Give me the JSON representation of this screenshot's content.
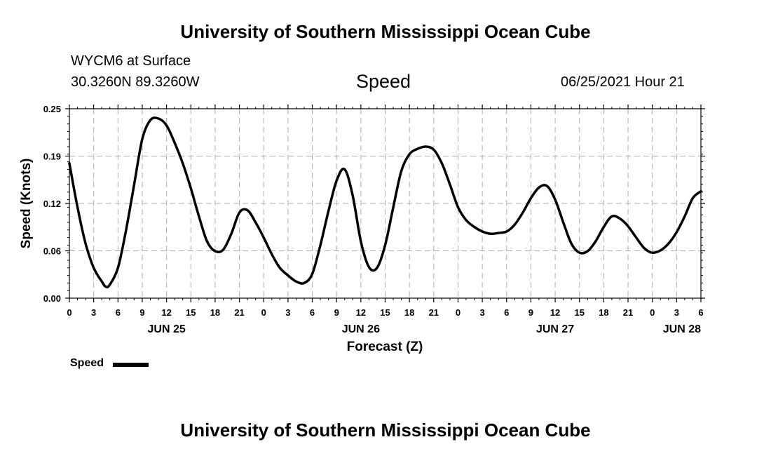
{
  "header": {
    "title": "University of Southern Mississippi Ocean Cube",
    "station": "WYCM6 at Surface",
    "coords": "30.3260N  89.3260W",
    "timestamp": "06/25/2021 Hour 21"
  },
  "footer": {
    "title": "University of Southern Mississippi Ocean Cube"
  },
  "chart_data": {
    "type": "line",
    "title": "Speed",
    "xlabel": "Forecast (Z)",
    "ylabel": "Speed (Knots)",
    "ylim": [
      0,
      0.25
    ],
    "xlim": [
      0,
      78
    ],
    "y_ticks": [
      "0.00",
      "0.06",
      "0.12",
      "0.19",
      "0.25"
    ],
    "x_tick_labels": [
      "0",
      "3",
      "6",
      "9",
      "12",
      "15",
      "18",
      "21",
      "0",
      "3",
      "6",
      "9",
      "12",
      "15",
      "18",
      "21",
      "0",
      "3",
      "6",
      "9",
      "12",
      "15",
      "18",
      "21",
      "0",
      "3",
      "6"
    ],
    "date_labels": [
      {
        "label": "JUN 25",
        "hour": 12
      },
      {
        "label": "JUN 26",
        "hour": 36
      },
      {
        "label": "JUN 27",
        "hour": 60
      },
      {
        "label": "JUN 28",
        "hour": 78
      }
    ],
    "grid": true,
    "line_color": "#000000",
    "series": [
      {
        "name": "Speed",
        "x": [
          0,
          1,
          2,
          3,
          4,
          4.5,
          5,
          6,
          7,
          8,
          9,
          10,
          11,
          12,
          13,
          14,
          15,
          16,
          17,
          18,
          19,
          20,
          21,
          22,
          23,
          24,
          25,
          26,
          27,
          28,
          29,
          30,
          31,
          32,
          33,
          34,
          35,
          36,
          37,
          38,
          39,
          40,
          41,
          42,
          43,
          44,
          45,
          46,
          47,
          48,
          49,
          50,
          51,
          52,
          53,
          54,
          55,
          56,
          57,
          58,
          59,
          60,
          61,
          62,
          63,
          64,
          65,
          66,
          67,
          68,
          69,
          70,
          71,
          72,
          73,
          74,
          75,
          76,
          77,
          78
        ],
        "values": [
          0.178,
          0.12,
          0.072,
          0.04,
          0.022,
          0.015,
          0.018,
          0.04,
          0.09,
          0.15,
          0.21,
          0.235,
          0.237,
          0.228,
          0.205,
          0.178,
          0.145,
          0.108,
          0.075,
          0.062,
          0.064,
          0.085,
          0.113,
          0.116,
          0.1,
          0.08,
          0.058,
          0.04,
          0.03,
          0.022,
          0.02,
          0.032,
          0.07,
          0.115,
          0.155,
          0.17,
          0.135,
          0.075,
          0.041,
          0.04,
          0.07,
          0.12,
          0.168,
          0.19,
          0.197,
          0.2,
          0.196,
          0.178,
          0.15,
          0.12,
          0.103,
          0.094,
          0.088,
          0.085,
          0.086,
          0.088,
          0.097,
          0.113,
          0.132,
          0.146,
          0.148,
          0.13,
          0.1,
          0.072,
          0.06,
          0.062,
          0.075,
          0.094,
          0.108,
          0.105,
          0.095,
          0.08,
          0.066,
          0.06,
          0.063,
          0.072,
          0.087,
          0.108,
          0.132,
          0.141
        ]
      }
    ],
    "legend": {
      "label": "Speed",
      "position": "bottom-left"
    }
  }
}
